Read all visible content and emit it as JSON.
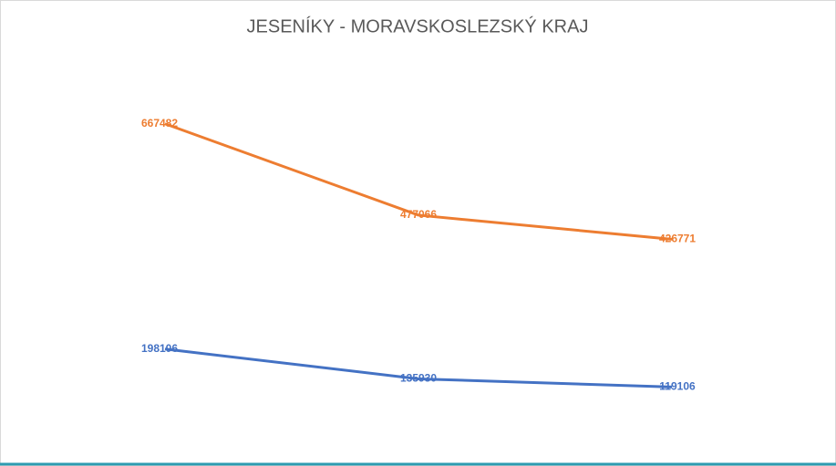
{
  "chart_data": {
    "type": "line",
    "title": "JESENÍKY - MORAVSKOSLEZSKÝ KRAJ",
    "categories": [
      null,
      null,
      null
    ],
    "series": [
      {
        "color": "#ed7d31",
        "values": [
          667482,
          477066,
          426771
        ]
      },
      {
        "color": "#4472c4",
        "values": [
          198106,
          135930,
          119106
        ]
      }
    ],
    "ylim": [
      0,
      800000
    ],
    "grid": false
  }
}
